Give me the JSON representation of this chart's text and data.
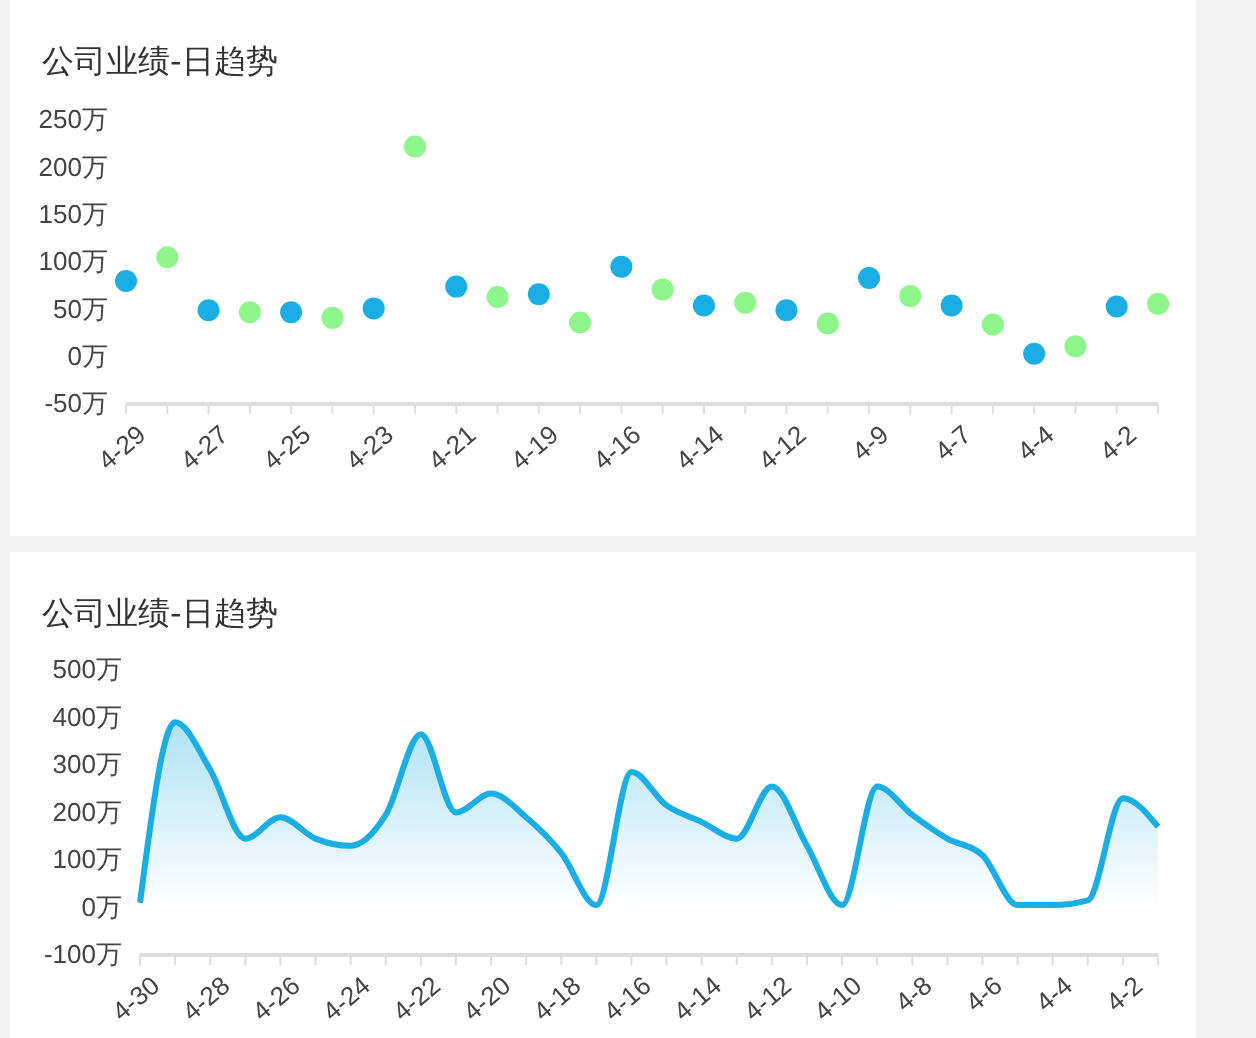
{
  "chart_data": [
    {
      "type": "scatter",
      "title": "公司业绩-日趋势",
      "categories": [
        "4-29",
        null,
        "4-27",
        null,
        "4-25",
        null,
        "4-23",
        null,
        "4-21",
        null,
        "4-19",
        null,
        "4-16",
        null,
        "4-14",
        null,
        "4-12",
        null,
        "4-9",
        null,
        "4-7",
        null,
        "4-4",
        null,
        "4-2",
        null
      ],
      "values": [
        80,
        105,
        49,
        47,
        47,
        41,
        51,
        222,
        74,
        63,
        66,
        36,
        95,
        71,
        54,
        57,
        49,
        35,
        83,
        64,
        54,
        34,
        3,
        11,
        53,
        56
      ],
      "colors": [
        "#1aaee5",
        "#8ef58a",
        "#1aaee5",
        "#8ef58a",
        "#1aaee5",
        "#8ef58a",
        "#1aaee5",
        "#8ef58a",
        "#1aaee5",
        "#8ef58a",
        "#1aaee5",
        "#8ef58a",
        "#1aaee5",
        "#8ef58a",
        "#1aaee5",
        "#8ef58a",
        "#1aaee5",
        "#8ef58a",
        "#1aaee5",
        "#8ef58a",
        "#1aaee5",
        "#8ef58a",
        "#1aaee5",
        "#8ef58a",
        "#1aaee5",
        "#8ef58a"
      ],
      "ylim": [
        -50,
        250
      ],
      "yticks": [
        {
          "value": -50,
          "label": "-50万"
        },
        {
          "value": 0,
          "label": "0万"
        },
        {
          "value": 50,
          "label": "50万"
        },
        {
          "value": 100,
          "label": "100万"
        },
        {
          "value": 150,
          "label": "150万"
        },
        {
          "value": 200,
          "label": "200万"
        },
        {
          "value": 250,
          "label": "250万"
        }
      ]
    },
    {
      "type": "area",
      "title": "公司业绩-日趋势",
      "categories": [
        "4-30",
        null,
        "4-28",
        null,
        "4-26",
        null,
        "4-24",
        null,
        "4-22",
        null,
        "4-20",
        null,
        "4-18",
        null,
        "4-16",
        null,
        "4-14",
        null,
        "4-12",
        null,
        "4-10",
        null,
        "4-8",
        null,
        "4-6",
        null,
        "4-4",
        null,
        "4-2",
        null
      ],
      "series": [
        {
          "color": "#1aaee5",
          "values": [
            10,
            390,
            290,
            145,
            190,
            145,
            130,
            195,
            365,
            200,
            240,
            190,
            115,
            5,
            285,
            215,
            180,
            145,
            255,
            130,
            5,
            255,
            195,
            145,
            110,
            5,
            5,
            15,
            230,
            170
          ]
        }
      ],
      "ylim": [
        -100,
        500
      ],
      "yticks": [
        {
          "value": -100,
          "label": "-100万"
        },
        {
          "value": 0,
          "label": "0万"
        },
        {
          "value": 100,
          "label": "100万"
        },
        {
          "value": 200,
          "label": "200万"
        },
        {
          "value": 300,
          "label": "300万"
        },
        {
          "value": 400,
          "label": "400万"
        },
        {
          "value": 500,
          "label": "500万"
        }
      ]
    }
  ]
}
